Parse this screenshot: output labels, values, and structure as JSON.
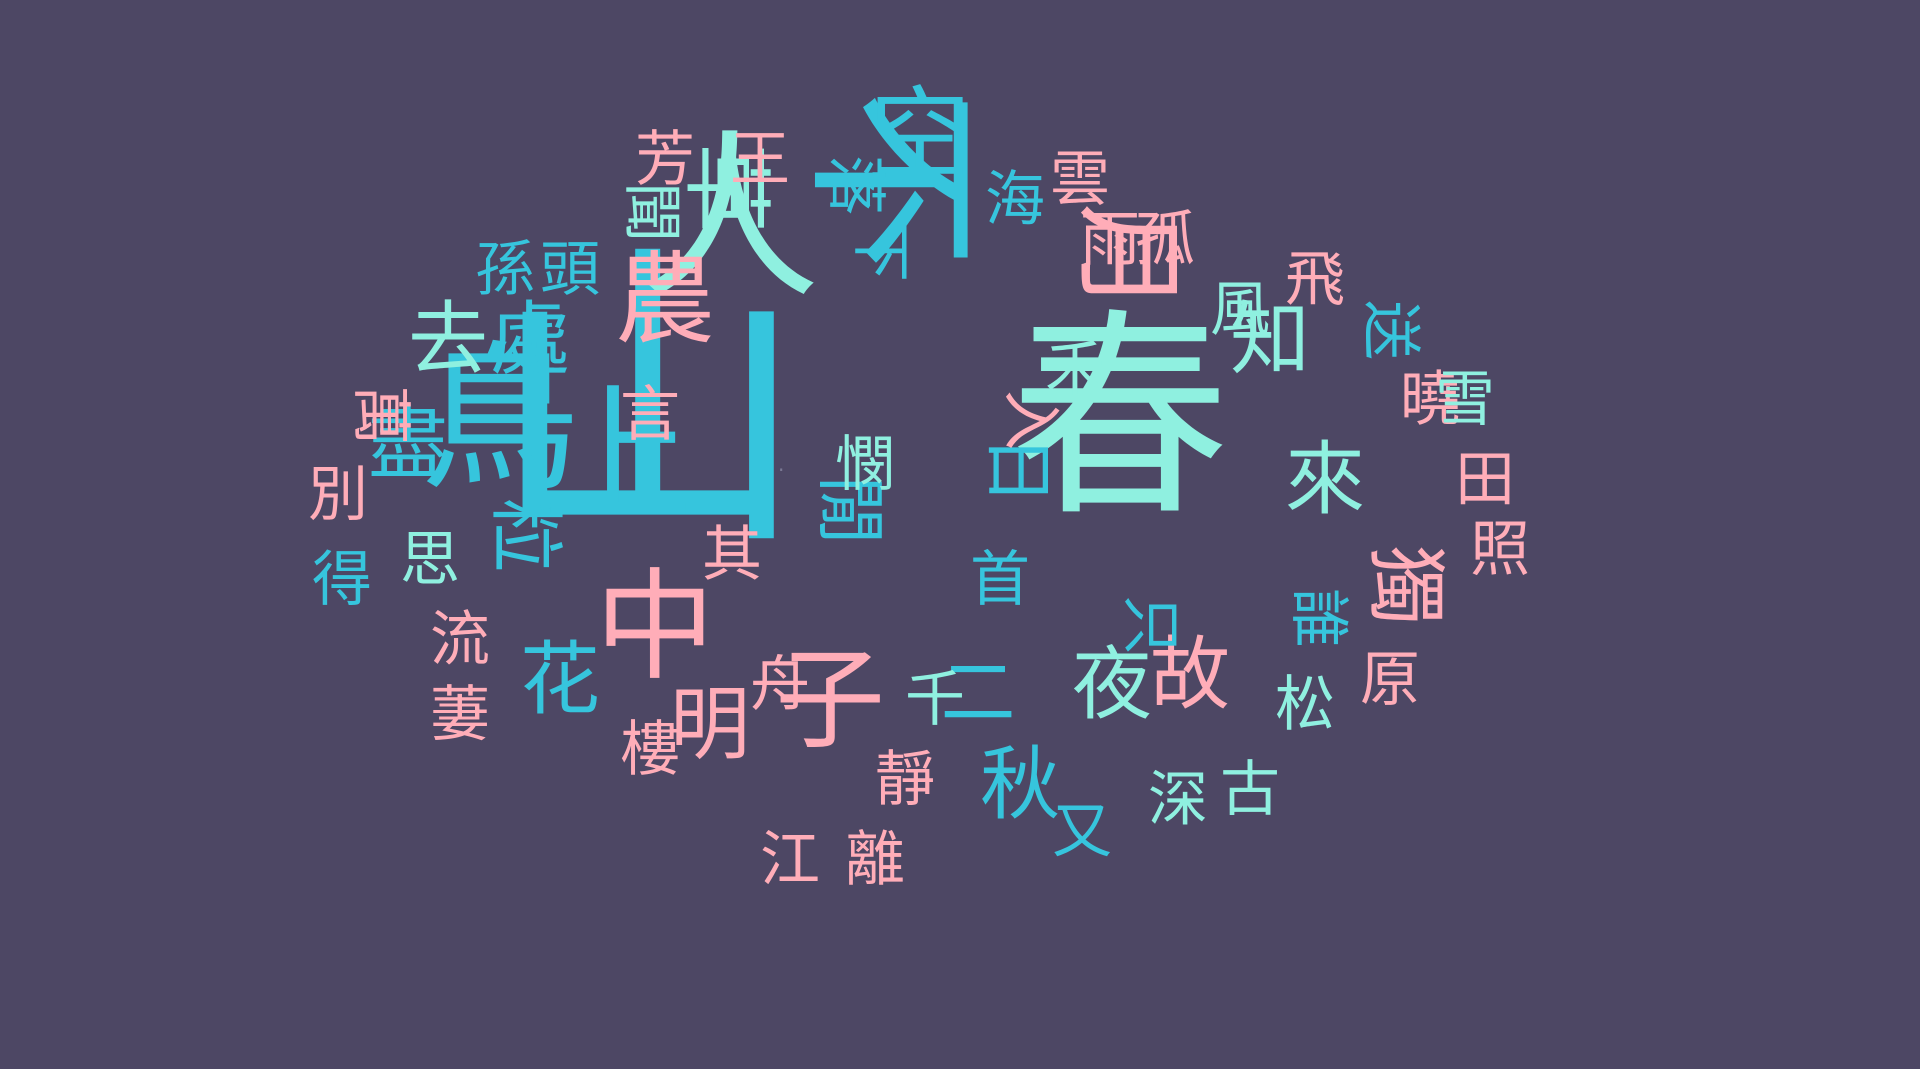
{
  "background": "#4d4764",
  "palette": {
    "cyan": "#36c5dd",
    "mint": "#8ff0e0",
    "pink": "#ffadb8"
  },
  "words": [
    {
      "text": "山",
      "color": "cyan"
    },
    {
      "text": "春",
      "color": "mint"
    },
    {
      "text": "不",
      "color": "cyan"
    },
    {
      "text": "人",
      "color": "mint"
    },
    {
      "text": "鳥",
      "color": "cyan"
    },
    {
      "text": "上",
      "color": "cyan"
    },
    {
      "text": "中",
      "color": "pink"
    },
    {
      "text": "子",
      "color": "pink"
    },
    {
      "text": "月",
      "color": "pink"
    },
    {
      "text": "空",
      "color": "cyan"
    },
    {
      "text": "草",
      "color": "mint"
    },
    {
      "text": "農",
      "color": "pink"
    },
    {
      "text": "去",
      "color": "mint"
    },
    {
      "text": "處",
      "color": "cyan"
    },
    {
      "text": "盡",
      "color": "cyan"
    },
    {
      "text": "粒",
      "color": "cyan"
    },
    {
      "text": "花",
      "color": "cyan"
    },
    {
      "text": "明",
      "color": "pink"
    },
    {
      "text": "秋",
      "color": "cyan"
    },
    {
      "text": "夜",
      "color": "mint"
    },
    {
      "text": "故",
      "color": "pink"
    },
    {
      "text": "獨",
      "color": "pink"
    },
    {
      "text": "來",
      "color": "mint"
    },
    {
      "text": "知",
      "color": "mint"
    },
    {
      "text": "閒",
      "color": "cyan"
    },
    {
      "text": "日",
      "color": "cyan"
    },
    {
      "text": "二",
      "color": "cyan"
    },
    {
      "text": "下",
      "color": "cyan"
    },
    {
      "text": "落",
      "color": "cyan"
    },
    {
      "text": "海",
      "color": "cyan"
    },
    {
      "text": "雲",
      "color": "pink"
    },
    {
      "text": "芳",
      "color": "pink"
    },
    {
      "text": "王",
      "color": "pink"
    },
    {
      "text": "聞",
      "color": "mint"
    },
    {
      "text": "孫",
      "color": "cyan"
    },
    {
      "text": "頭",
      "color": "cyan"
    },
    {
      "text": "雨",
      "color": "pink"
    },
    {
      "text": "孤",
      "color": "pink"
    },
    {
      "text": "風",
      "color": "mint"
    },
    {
      "text": "飛",
      "color": "pink"
    },
    {
      "text": "送",
      "color": "cyan"
    },
    {
      "text": "曉",
      "color": "pink"
    },
    {
      "text": "雪",
      "color": "mint"
    },
    {
      "text": "田",
      "color": "pink"
    },
    {
      "text": "照",
      "color": "pink"
    },
    {
      "text": "萬",
      "color": "pink"
    },
    {
      "text": "言",
      "color": "pink"
    },
    {
      "text": "別",
      "color": "pink"
    },
    {
      "text": "得",
      "color": "cyan"
    },
    {
      "text": "思",
      "color": "mint"
    },
    {
      "text": "流",
      "color": "pink"
    },
    {
      "text": "萋",
      "color": "pink"
    },
    {
      "text": "其",
      "color": "pink"
    },
    {
      "text": "憫",
      "color": "mint"
    },
    {
      "text": "入",
      "color": "pink"
    },
    {
      "text": "禾",
      "color": "mint"
    },
    {
      "text": "首",
      "color": "cyan"
    },
    {
      "text": "只",
      "color": "cyan"
    },
    {
      "text": "誰",
      "color": "cyan"
    },
    {
      "text": "原",
      "color": "pink"
    },
    {
      "text": "松",
      "color": "mint"
    },
    {
      "text": "舟",
      "color": "pink"
    },
    {
      "text": "樓",
      "color": "pink"
    },
    {
      "text": "千",
      "color": "mint"
    },
    {
      "text": "靜",
      "color": "pink"
    },
    {
      "text": "江",
      "color": "pink"
    },
    {
      "text": "離",
      "color": "pink"
    },
    {
      "text": "又",
      "color": "cyan"
    },
    {
      "text": "深",
      "color": "mint"
    },
    {
      "text": "古",
      "color": "mint"
    }
  ]
}
